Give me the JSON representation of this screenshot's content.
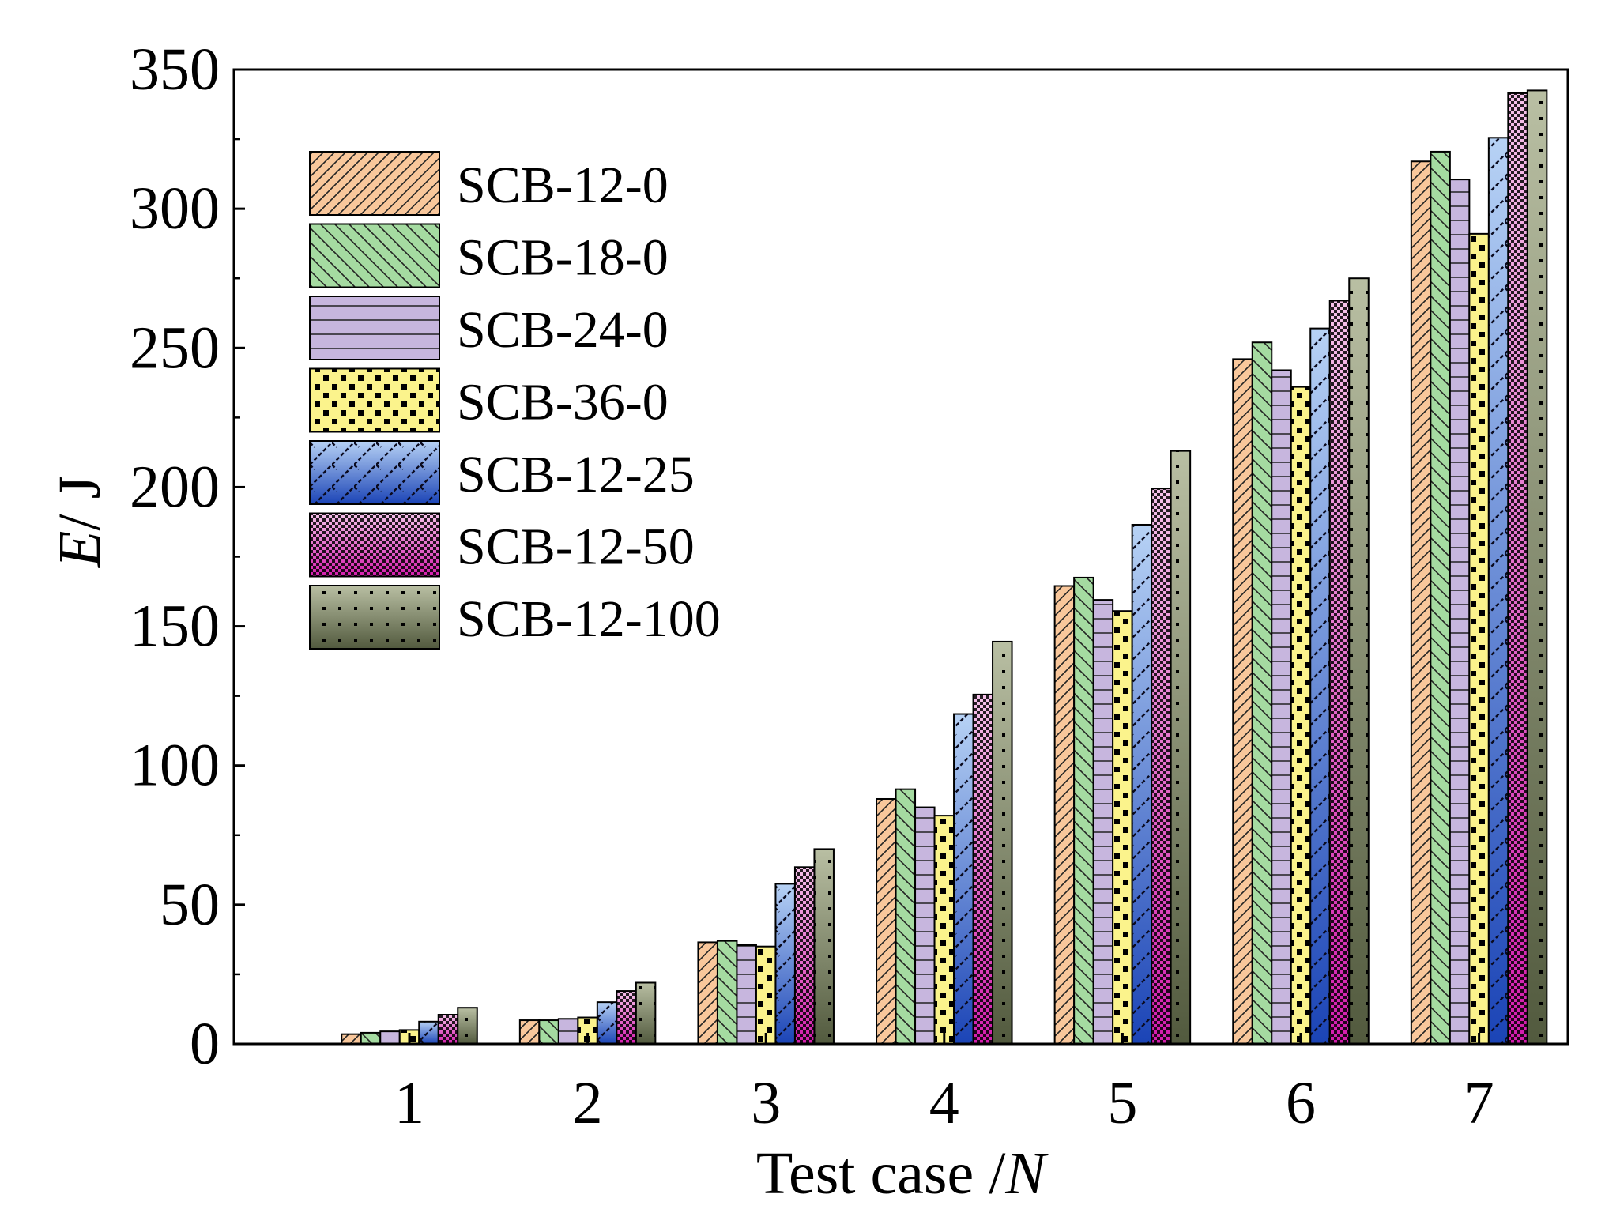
{
  "chart_data": {
    "type": "bar",
    "title": "",
    "xlabel": "Test case /",
    "xlabel_italic": "N",
    "ylabel_italic": "E",
    "ylabel": "/ J",
    "ylim": [
      0,
      350
    ],
    "yticks": [
      0,
      50,
      100,
      150,
      200,
      250,
      300,
      350
    ],
    "ytick_labels": [
      "0",
      "50",
      "100",
      "150",
      "200",
      "250",
      "300",
      "350"
    ],
    "categories": [
      "1",
      "2",
      "3",
      "4",
      "5",
      "6",
      "7"
    ],
    "grid": false,
    "legend_position": "top-left",
    "series": [
      {
        "name": "SCB-12-0",
        "color_top": "#f9c79b",
        "color_bottom": "#f9c79b",
        "pattern": "diag-right",
        "values": [
          3.5,
          8.5,
          36.5,
          88,
          164.5,
          246,
          317
        ]
      },
      {
        "name": "SCB-18-0",
        "color_top": "#a5dba1",
        "color_bottom": "#a5dba1",
        "pattern": "diag-left",
        "values": [
          4.0,
          8.5,
          37,
          91.5,
          167.5,
          252,
          320.5
        ]
      },
      {
        "name": "SCB-24-0",
        "color_top": "#c7b6de",
        "color_bottom": "#c7b6de",
        "pattern": "horizontal",
        "values": [
          4.5,
          9.0,
          35.5,
          85,
          159.5,
          242,
          310.5
        ]
      },
      {
        "name": "SCB-36-0",
        "color_top": "#fbf38c",
        "color_bottom": "#fbf38c",
        "pattern": "dots-big",
        "values": [
          5.0,
          9.5,
          35,
          82,
          155.5,
          236,
          291
        ]
      },
      {
        "name": "SCB-12-25",
        "color_top": "#b7d2f5",
        "color_bottom": "#1b44b6",
        "pattern": "lattice",
        "values": [
          8.0,
          15,
          57.5,
          118.5,
          186.5,
          257,
          325.5
        ]
      },
      {
        "name": "SCB-12-50",
        "color_top": "#f6c2ea",
        "color_bottom": "#d51bae",
        "pattern": "checker",
        "values": [
          10.5,
          19,
          63.5,
          125.5,
          199.5,
          267,
          341.5
        ]
      },
      {
        "name": "SCB-12-100",
        "color_top": "#b9bfa3",
        "color_bottom": "#525a3e",
        "pattern": "dots-small",
        "values": [
          13,
          22,
          70,
          144.5,
          213,
          275,
          342.5
        ]
      }
    ]
  }
}
